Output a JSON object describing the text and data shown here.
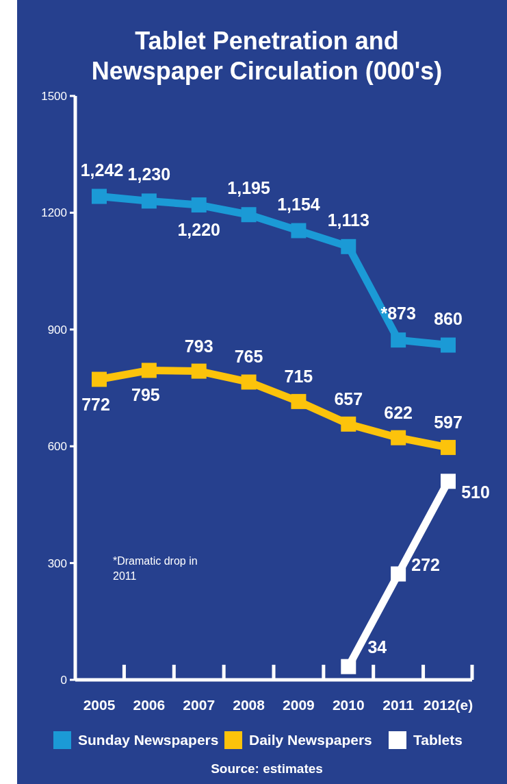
{
  "chart_data": {
    "type": "line",
    "title": "Tablet Penetration and Newspaper Circulation (000's)",
    "categories": [
      "2005",
      "2006",
      "2007",
      "2008",
      "2009",
      "2010",
      "2011",
      "2012(e)"
    ],
    "series": [
      {
        "name": "Sunday Newspapers",
        "color": "#1b9ad6",
        "values": [
          1242,
          1230,
          1220,
          1195,
          1154,
          1113,
          873,
          860
        ],
        "value_labels": [
          "1,242",
          "1,230",
          "1,220",
          "1,195",
          "1,154",
          "1,113",
          "*873",
          "860"
        ]
      },
      {
        "name": "Daily Newspapers",
        "color": "#fcc30b",
        "values": [
          772,
          795,
          793,
          765,
          715,
          657,
          622,
          597
        ],
        "value_labels": [
          "772",
          "795",
          "793",
          "765",
          "715",
          "657",
          "622",
          "597"
        ]
      },
      {
        "name": "Tablets",
        "color": "#ffffff",
        "values": [
          null,
          null,
          null,
          null,
          null,
          34,
          272,
          510
        ],
        "value_labels": [
          null,
          null,
          null,
          null,
          null,
          "34",
          "272",
          "510"
        ]
      }
    ],
    "ylim": [
      0,
      1500
    ],
    "yticks": [
      0,
      300,
      600,
      900,
      1200,
      1500
    ],
    "legend": "bottom",
    "marker": "square",
    "line_style": "solid",
    "annotations": [
      "*Dramatic drop in 2011",
      "Source: estimates"
    ]
  }
}
